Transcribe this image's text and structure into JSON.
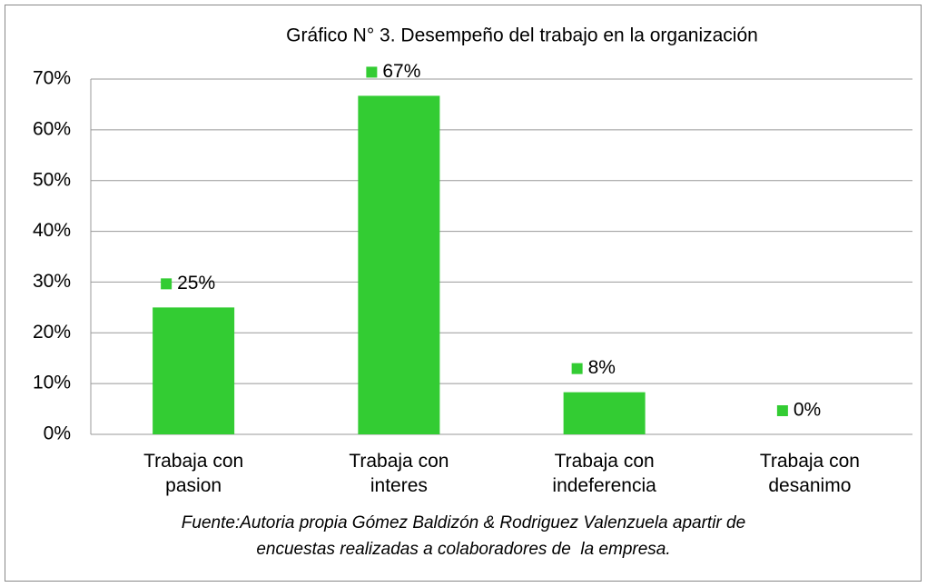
{
  "chart_data": {
    "type": "bar",
    "title": "Gráfico N° 3. Desempeño del trabajo en la organización",
    "categories": [
      "Trabaja con pasion",
      "Trabaja con interes",
      "Trabaja con indeferencia",
      "Trabaja con desanimo"
    ],
    "values": [
      25,
      66.7,
      8.3,
      0
    ],
    "value_labels": [
      "25%",
      "67%",
      "8%",
      "0%"
    ],
    "color": "#33cc33",
    "ylim": [
      0,
      70
    ],
    "yticks": [
      {
        "value": 0,
        "label": "0%"
      },
      {
        "value": 10,
        "label": "10%"
      },
      {
        "value": 20,
        "label": "20%"
      },
      {
        "value": 30,
        "label": "30%"
      },
      {
        "value": 40,
        "label": "40%"
      },
      {
        "value": 50,
        "label": "50%"
      },
      {
        "value": 60,
        "label": "60%"
      },
      {
        "value": 70,
        "label": "70%"
      }
    ],
    "grid": true,
    "source": [
      "Fuente:Autoria propia Gómez Baldizón & Rodriguez Valenzuela apartir de",
      "encuestas realizadas a colaboradores de  la empresa."
    ]
  }
}
